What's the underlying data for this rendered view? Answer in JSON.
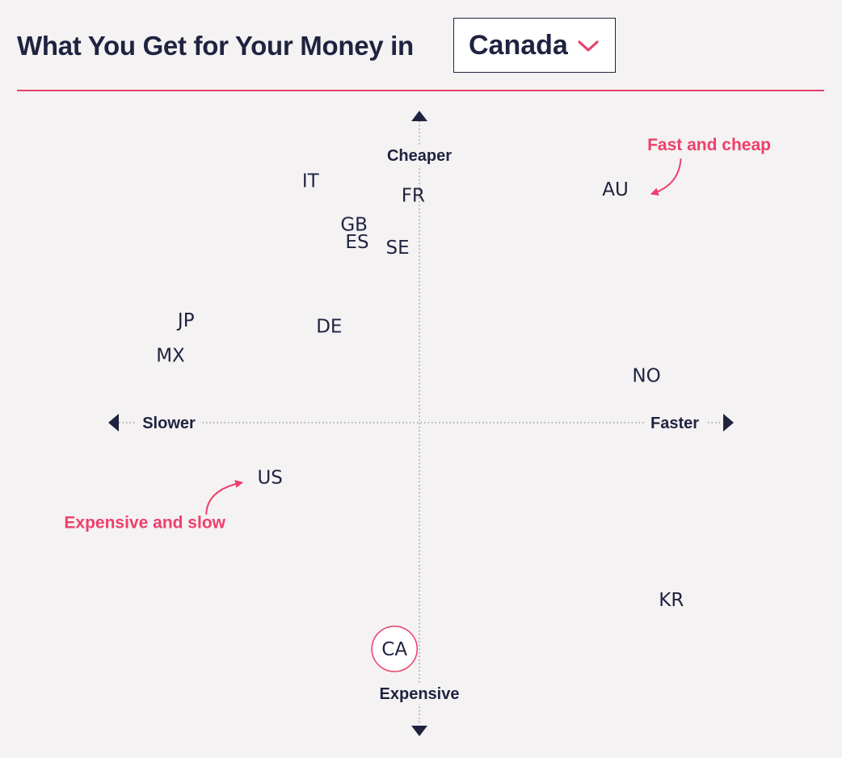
{
  "header": {
    "title": "What You Get for Your Money in",
    "selected_country": "Canada"
  },
  "colors": {
    "accent": "#e8416b",
    "text": "#1f2340",
    "background": "#f4f2f2"
  },
  "icons": {
    "dropdown": "chevron-down-icon"
  },
  "chart_data": {
    "type": "scatter",
    "title": "",
    "xlim": [
      -1,
      1
    ],
    "ylim": [
      -1,
      1
    ],
    "grid": false,
    "axes": {
      "top_label": "Cheaper",
      "bottom_label": "Expensive",
      "left_label": "Slower",
      "right_label": "Faster"
    },
    "points": [
      {
        "label": "IT",
        "x": -0.35,
        "y": 0.81,
        "highlight": false
      },
      {
        "label": "FR",
        "x": -0.02,
        "y": 0.76,
        "highlight": false
      },
      {
        "label": "AU",
        "x": 0.63,
        "y": 0.78,
        "highlight": false
      },
      {
        "label": "GB",
        "x": -0.21,
        "y": 0.66,
        "highlight": false
      },
      {
        "label": "ES",
        "x": -0.2,
        "y": 0.6,
        "highlight": false
      },
      {
        "label": "SE",
        "x": -0.07,
        "y": 0.58,
        "highlight": false
      },
      {
        "label": "JP",
        "x": -0.75,
        "y": 0.33,
        "highlight": false
      },
      {
        "label": "DE",
        "x": -0.29,
        "y": 0.31,
        "highlight": false
      },
      {
        "label": "MX",
        "x": -0.8,
        "y": 0.21,
        "highlight": false
      },
      {
        "label": "NO",
        "x": 0.73,
        "y": 0.14,
        "highlight": false
      },
      {
        "label": "US",
        "x": -0.48,
        "y": -0.21,
        "highlight": false
      },
      {
        "label": "KR",
        "x": 0.81,
        "y": -0.63,
        "highlight": false
      },
      {
        "label": "CA",
        "x": -0.08,
        "y": -0.8,
        "highlight": true
      }
    ],
    "annotations": [
      {
        "text": "Fast and cheap",
        "target": "AU"
      },
      {
        "text": "Expensive and slow",
        "target": "US"
      }
    ]
  }
}
